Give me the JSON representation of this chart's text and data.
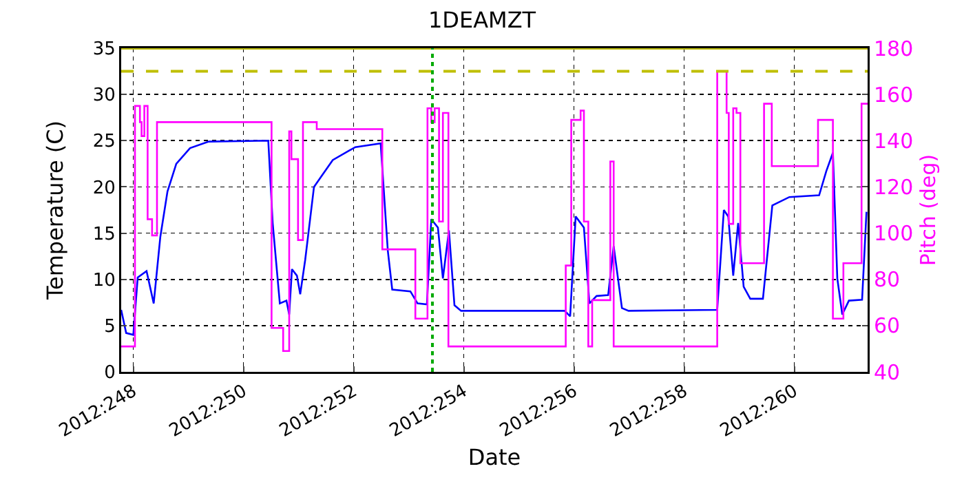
{
  "chart_data": {
    "type": "line",
    "title": "1DEAMZT",
    "xlabel": "Date",
    "ylabel": "Temperature (C)",
    "y2label": "Pitch (deg)",
    "xlim": [
      "2012-09-03T18:43",
      "2012-09-17T07:55"
    ],
    "xticks": [
      {
        "value": "2012-09-04",
        "label": "2012:248"
      },
      {
        "value": "2012-09-06",
        "label": "2012:250"
      },
      {
        "value": "2012-09-08",
        "label": "2012:252"
      },
      {
        "value": "2012-09-10",
        "label": "2012:254"
      },
      {
        "value": "2012-09-12",
        "label": "2012:256"
      },
      {
        "value": "2012-09-14",
        "label": "2012:258"
      },
      {
        "value": "2012-09-16",
        "label": "2012:260"
      }
    ],
    "ylim": [
      0,
      35
    ],
    "yticks": [
      0,
      5,
      10,
      15,
      20,
      25,
      30,
      35
    ],
    "y2lim": [
      40,
      180
    ],
    "y2ticks": [
      40,
      60,
      80,
      100,
      120,
      140,
      160,
      180
    ],
    "grid": true,
    "line_style": "solid",
    "series": [
      {
        "color": "#0000ff",
        "x": [
          "2012-09-03T18:43",
          "2012-09-03T20:53",
          "2012-09-04T00:00",
          "2012-09-04T01:55",
          "2012-09-04T05:46",
          "2012-09-04T08:53",
          "2012-09-04T11:46",
          "2012-09-04T14:53",
          "2012-09-04T18:43",
          "2012-09-05T00:43",
          "2012-09-05T08:53",
          "2012-09-06T10:48",
          "2012-09-06T12:43",
          "2012-09-06T15:50",
          "2012-09-06T18:43",
          "2012-09-06T19:55",
          "2012-09-06T21:07",
          "2012-09-06T23:17",
          "2012-09-07T00:43",
          "2012-09-07T02:53",
          "2012-09-07T06:43",
          "2012-09-07T14:53",
          "2012-09-08T00:43",
          "2012-09-08T11:46",
          "2012-09-08T14:53",
          "2012-09-08T16:48",
          "2012-09-09T00:43",
          "2012-09-09T03:50",
          "2012-09-09T07:55",
          "2012-09-09T09:50",
          "2012-09-09T12:43",
          "2012-09-09T14:53",
          "2012-09-09T17:31",
          "2012-09-09T19:55",
          "2012-09-09T22:48",
          "2012-09-11T19:55",
          "2012-09-11T22:19",
          "2012-09-12T00:43",
          "2012-09-12T04:19",
          "2012-09-12T06:43",
          "2012-09-12T09:50",
          "2012-09-12T14:53",
          "2012-09-12T17:17",
          "2012-09-12T20:53",
          "2012-09-12T23:46",
          "2012-09-14T14:24",
          "2012-09-14T17:17",
          "2012-09-14T19:12",
          "2012-09-14T21:22",
          "2012-09-14T23:31",
          "2012-09-15T01:55",
          "2012-09-15T04:48",
          "2012-09-15T10:19",
          "2012-09-15T14:24",
          "2012-09-15T21:50",
          "2012-09-16T10:48",
          "2012-09-16T13:55",
          "2012-09-16T16:48",
          "2012-09-16T18:43",
          "2012-09-16T20:53",
          "2012-09-16T23:46",
          "2012-09-17T05:31",
          "2012-09-17T07:26"
        ],
        "values": [
          6.7,
          4.2,
          4.0,
          10.2,
          10.9,
          7.4,
          14.6,
          19.5,
          22.5,
          24.2,
          24.9,
          25.0,
          16.1,
          7.4,
          7.7,
          6.2,
          11.1,
          10.4,
          8.4,
          12.1,
          20.0,
          22.9,
          24.3,
          24.7,
          13.1,
          8.9,
          8.7,
          7.4,
          7.3,
          16.5,
          15.6,
          10.1,
          15.3,
          7.2,
          6.6,
          6.6,
          6.0,
          16.8,
          15.6,
          7.4,
          8.2,
          8.3,
          13.6,
          6.9,
          6.6,
          6.7,
          17.5,
          16.8,
          10.4,
          16.1,
          9.2,
          7.9,
          7.9,
          18.0,
          18.9,
          19.1,
          21.7,
          23.7,
          10.1,
          6.2,
          7.7,
          7.8,
          17.3
        ]
      },
      {
        "type": "step",
        "axis": "y2",
        "color": "#ff00ff",
        "x": [
          "2012-09-03T18:43",
          "2012-09-04T00:43",
          "2012-09-04T02:53",
          "2012-09-04T03:36",
          "2012-09-04T04:48",
          "2012-09-04T06:14",
          "2012-09-04T08:10",
          "2012-09-04T10:19",
          "2012-09-06T12:14",
          "2012-09-06T17:17",
          "2012-09-06T19:55",
          "2012-09-06T20:53",
          "2012-09-06T23:46",
          "2012-09-07T01:55",
          "2012-09-07T07:55",
          "2012-09-08T12:29",
          "2012-09-09T02:53",
          "2012-09-09T08:10",
          "2012-09-09T09:50",
          "2012-09-09T11:17",
          "2012-09-09T13:12",
          "2012-09-09T14:53",
          "2012-09-09T17:17",
          "2012-09-11T20:24",
          "2012-09-11T22:48",
          "2012-09-12T02:53",
          "2012-09-12T04:19",
          "2012-09-12T06:14",
          "2012-09-12T07:55",
          "2012-09-12T15:50",
          "2012-09-12T17:17",
          "2012-09-14T14:24",
          "2012-09-14T18:29",
          "2012-09-14T19:26",
          "2012-09-14T21:22",
          "2012-09-14T22:48",
          "2012-09-15T00:29",
          "2012-09-15T10:48",
          "2012-09-15T14:10",
          "2012-09-16T10:19",
          "2012-09-16T16:48",
          "2012-09-16T21:22",
          "2012-09-17T05:17",
          "2012-09-17T07:55"
        ],
        "values": [
          51,
          155,
          148,
          142,
          155,
          106,
          99,
          148,
          59,
          49,
          144,
          132,
          97,
          148,
          145,
          93,
          63,
          154,
          148,
          154,
          105,
          152,
          51,
          86,
          149,
          153,
          105,
          51,
          71,
          131,
          51,
          170,
          152,
          104,
          154,
          152,
          87,
          156,
          129,
          149,
          63,
          87,
          156,
          156
        ]
      }
    ],
    "ref_lines": [
      {
        "axis": "y",
        "value": 32.5,
        "color": "#bfbf00",
        "line_style": "dashed"
      },
      {
        "axis": "y",
        "value": 35,
        "color": "#bfbf00",
        "line_style": "solid"
      },
      {
        "axis": "x",
        "value": "2012-09-09T10:19",
        "color": "#00aa00",
        "line_style": "dotted"
      }
    ]
  }
}
